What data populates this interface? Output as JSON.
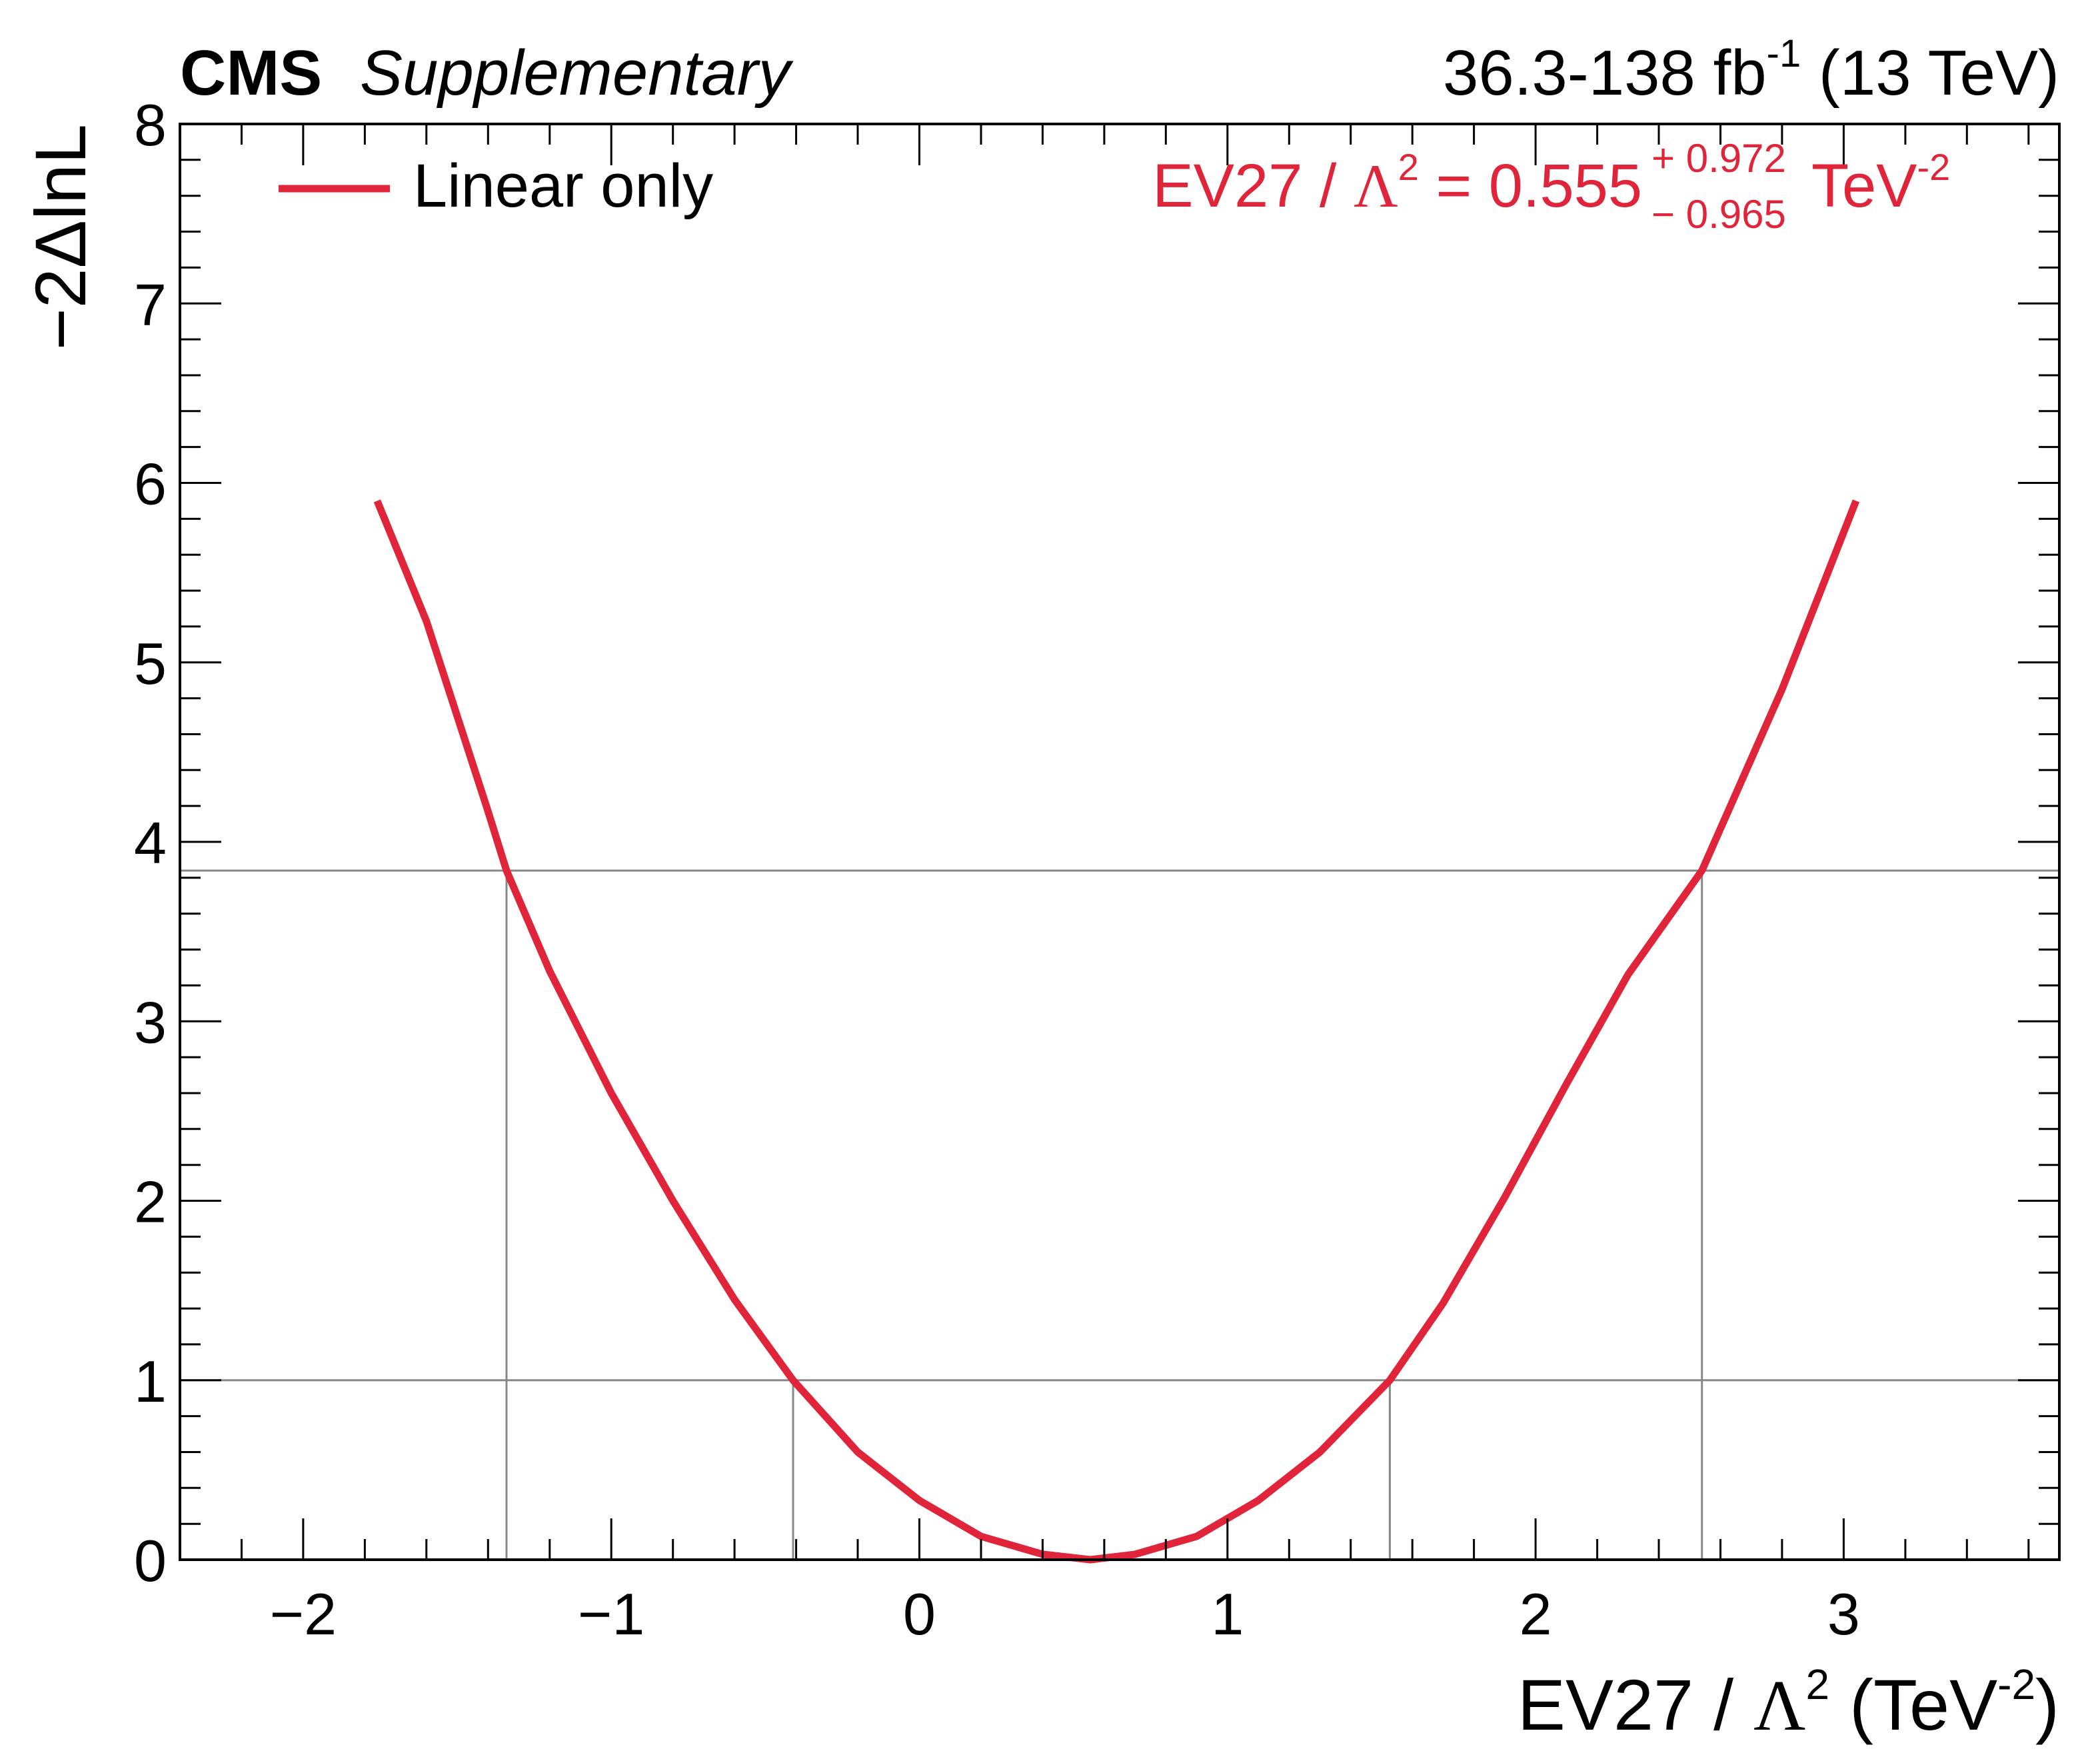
{
  "header": {
    "experiment": "CMS",
    "qualifier": "Supplementary",
    "lumi_prefix": "36.3-138 fb",
    "lumi_exp": "-1",
    "lumi_suffix": " (13 TeV)"
  },
  "legend": {
    "label": "Linear only"
  },
  "result": {
    "lhs_name": "EV27 / ",
    "lambda": "Λ",
    "lambda_exp": "2",
    "equals_value": " = 0.555",
    "err_up": "+ 0.972",
    "err_down": "− 0.965",
    "unit": " TeV",
    "unit_exp": "-2"
  },
  "axes": {
    "ylabel": "−2ΔlnL",
    "xlabel_name": "EV27 / ",
    "xlabel_lambda": "Λ",
    "xlabel_lambda_exp": "2",
    "xlabel_unit_open": " (TeV",
    "xlabel_unit_exp": "-2",
    "xlabel_unit_close": ")"
  },
  "colors": {
    "curve": "#e0243a",
    "reference_lines": "#888888",
    "frame": "#000000"
  },
  "chart_data": {
    "type": "line",
    "xlim": [
      -2.4,
      3.7
    ],
    "ylim": [
      0,
      8
    ],
    "x_ticks": [
      -2,
      -1,
      0,
      1,
      2,
      3
    ],
    "x_tick_labels": [
      "−2",
      "−1",
      "0",
      "1",
      "2",
      "3"
    ],
    "y_ticks": [
      0,
      1,
      2,
      3,
      4,
      5,
      6,
      7,
      8
    ],
    "y_tick_labels": [
      "0",
      "1",
      "2",
      "3",
      "4",
      "5",
      "6",
      "7",
      "8"
    ],
    "best_fit": 0.555,
    "interval_68": [
      -0.41,
      1.527
    ],
    "interval_95": [
      -1.34,
      2.54
    ],
    "horizontal_lines": [
      1.0,
      3.84
    ],
    "series": [
      {
        "name": "Linear only",
        "x": [
          -1.76,
          -1.6,
          -1.4,
          -1.34,
          -1.2,
          -1.0,
          -0.8,
          -0.6,
          -0.41,
          -0.2,
          0.0,
          0.2,
          0.4,
          0.555,
          0.7,
          0.9,
          1.1,
          1.3,
          1.527,
          1.7,
          1.9,
          2.1,
          2.3,
          2.54,
          2.8,
          3.04
        ],
        "y": [
          5.9,
          5.23,
          4.17,
          3.84,
          3.28,
          2.6,
          2.0,
          1.45,
          1.0,
          0.6,
          0.33,
          0.13,
          0.03,
          0.0,
          0.03,
          0.13,
          0.33,
          0.6,
          1.0,
          1.43,
          2.02,
          2.65,
          3.26,
          3.84,
          4.85,
          5.9
        ]
      }
    ],
    "grid": false,
    "legend_position": "top-left"
  }
}
